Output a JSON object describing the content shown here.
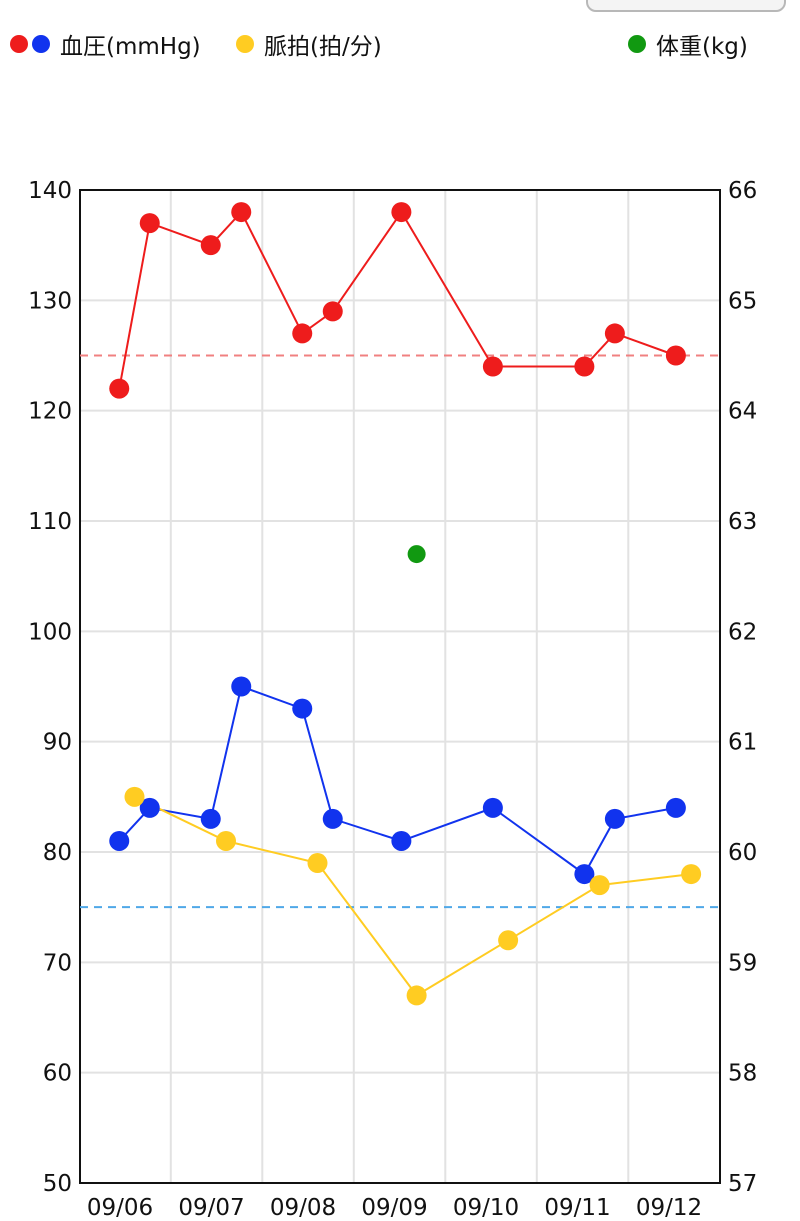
{
  "legend": {
    "blood_pressure": {
      "label": "血圧(mmHg)",
      "colors": [
        "#ee1c1c",
        "#1133ee"
      ]
    },
    "pulse": {
      "label": "脈拍(拍/分)",
      "color": "#ffcc22"
    },
    "weight": {
      "label": "体重(kg)",
      "color": "#119911"
    }
  },
  "chart_data": {
    "type": "line",
    "x_dates": [
      "09/06",
      "09/07",
      "09/08",
      "09/09",
      "09/10",
      "09/11",
      "09/12"
    ],
    "grid": true,
    "y_left": {
      "range": [
        50,
        140
      ],
      "ticks": [
        140,
        130,
        120,
        110,
        100,
        90,
        80,
        70,
        60,
        50
      ]
    },
    "y_right": {
      "range": [
        57,
        66
      ],
      "ticks": [
        66,
        65,
        64,
        63,
        62,
        61,
        60,
        59,
        58,
        57
      ]
    },
    "reference_lines": [
      {
        "axis": "left",
        "value": 125,
        "color": "#f08080",
        "style": "dashed"
      },
      {
        "axis": "left",
        "value": 75,
        "color": "#4fa8e8",
        "style": "dashed"
      }
    ],
    "series": [
      {
        "key": "systolic",
        "axis": "left",
        "color": "#ee1c1c",
        "points": [
          {
            "x": "09/06 04:00",
            "y": 122
          },
          {
            "x": "09/06 12:00",
            "y": 137
          },
          {
            "x": "09/07 04:00",
            "y": 135
          },
          {
            "x": "09/07 12:00",
            "y": 138
          },
          {
            "x": "09/08 04:00",
            "y": 127
          },
          {
            "x": "09/08 12:00",
            "y": 129
          },
          {
            "x": "09/09 06:00",
            "y": 138
          },
          {
            "x": "09/10 06:00",
            "y": 124
          },
          {
            "x": "09/11 06:00",
            "y": 124
          },
          {
            "x": "09/11 14:00",
            "y": 127
          },
          {
            "x": "09/12 06:00",
            "y": 125
          }
        ]
      },
      {
        "key": "diastolic",
        "axis": "left",
        "color": "#1133ee",
        "points": [
          {
            "x": "09/06 04:00",
            "y": 81
          },
          {
            "x": "09/06 12:00",
            "y": 84
          },
          {
            "x": "09/07 04:00",
            "y": 83
          },
          {
            "x": "09/07 12:00",
            "y": 95
          },
          {
            "x": "09/08 04:00",
            "y": 93
          },
          {
            "x": "09/08 12:00",
            "y": 83
          },
          {
            "x": "09/09 06:00",
            "y": 81
          },
          {
            "x": "09/10 06:00",
            "y": 84
          },
          {
            "x": "09/11 06:00",
            "y": 78
          },
          {
            "x": "09/11 14:00",
            "y": 83
          },
          {
            "x": "09/12 06:00",
            "y": 84
          }
        ]
      },
      {
        "key": "pulse",
        "axis": "left",
        "color": "#ffcc22",
        "points": [
          {
            "x": "09/06 08:00",
            "y": 85
          },
          {
            "x": "09/07 08:00",
            "y": 81
          },
          {
            "x": "09/08 08:00",
            "y": 79
          },
          {
            "x": "09/09 10:00",
            "y": 67
          },
          {
            "x": "09/10 10:00",
            "y": 72
          },
          {
            "x": "09/11 10:00",
            "y": 77
          },
          {
            "x": "09/12 10:00",
            "y": 78
          }
        ]
      },
      {
        "key": "weight",
        "axis": "right",
        "color": "#119911",
        "connect": false,
        "points": [
          {
            "x": "09/09 10:00",
            "y": 62.7
          }
        ]
      }
    ]
  }
}
